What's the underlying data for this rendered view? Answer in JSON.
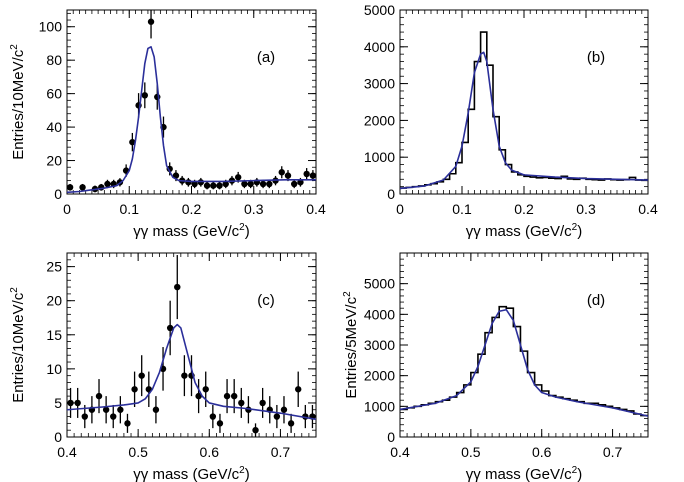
{
  "figure": {
    "panels": 4
  },
  "chart_data": [
    {
      "type": "scatter",
      "panel_label": "(a)",
      "xlabel": "γγ mass (GeV/c²)",
      "xlabel_parts": {
        "main": "γγ mass (GeV/c",
        "sup": "2",
        "end": ")"
      },
      "ylabel": "Entries/10MeV/c²",
      "ylabel_parts": {
        "main": "Entries/10MeV/c",
        "sup": "2",
        "end": ""
      },
      "xlim": [
        0,
        0.4
      ],
      "ylim": [
        0,
        110
      ],
      "xticks": [
        0,
        0.1,
        0.2,
        0.3,
        0.4
      ],
      "xtick_labels": [
        "0",
        "0.1",
        "0.2",
        "0.3",
        "0.4"
      ],
      "yticks": [
        0,
        20,
        40,
        60,
        80,
        100
      ],
      "ytick_labels": [
        "0",
        "20",
        "40",
        "60",
        "80",
        "100"
      ],
      "points": {
        "x": [
          0.005,
          0.025,
          0.045,
          0.055,
          0.065,
          0.075,
          0.085,
          0.095,
          0.105,
          0.115,
          0.125,
          0.135,
          0.145,
          0.155,
          0.165,
          0.175,
          0.185,
          0.195,
          0.205,
          0.215,
          0.225,
          0.235,
          0.245,
          0.255,
          0.265,
          0.275,
          0.285,
          0.295,
          0.305,
          0.315,
          0.325,
          0.335,
          0.345,
          0.355,
          0.365,
          0.375,
          0.385,
          0.395
        ],
        "y": [
          4,
          4,
          3,
          4,
          6,
          6,
          7,
          14,
          31,
          53,
          59,
          103,
          58,
          40,
          15,
          11,
          8,
          7,
          6,
          7,
          5,
          5,
          5,
          6,
          8,
          10,
          6,
          6,
          7,
          6,
          6,
          8,
          13,
          11,
          6,
          7,
          12,
          11
        ],
        "err": [
          2,
          2,
          2,
          2,
          2.5,
          2.5,
          2.5,
          3.7,
          5.5,
          7.3,
          7.7,
          10,
          7.6,
          6.3,
          3.9,
          3.3,
          2.8,
          2.6,
          2.5,
          2.6,
          2.2,
          2.2,
          2.2,
          2.5,
          2.8,
          3.2,
          2.5,
          2.5,
          2.6,
          2.5,
          2.5,
          2.8,
          3.6,
          3.3,
          2.5,
          2.6,
          3.5,
          3.3
        ]
      },
      "fit": {
        "x": [
          0,
          0.02,
          0.04,
          0.06,
          0.08,
          0.09,
          0.1,
          0.105,
          0.11,
          0.115,
          0.12,
          0.125,
          0.13,
          0.135,
          0.14,
          0.145,
          0.15,
          0.155,
          0.16,
          0.17,
          0.18,
          0.2,
          0.25,
          0.3,
          0.35,
          0.4
        ],
        "y": [
          1,
          1.5,
          2.5,
          3.5,
          5,
          8,
          14,
          21,
          32,
          46,
          62,
          78,
          87,
          88,
          82,
          66,
          46,
          29,
          17,
          10,
          8,
          7.5,
          7.5,
          8,
          8.5,
          8.5
        ]
      }
    },
    {
      "type": "line",
      "panel_label": "(b)",
      "xlabel": "γγ mass (GeV/c²)",
      "xlabel_parts": {
        "main": "γγ mass (GeV/c",
        "sup": "2",
        "end": ")"
      },
      "ylabel": "",
      "ylabel_parts": {
        "main": "",
        "sup": "",
        "end": ""
      },
      "xlim": [
        0,
        0.4
      ],
      "ylim": [
        0,
        5000
      ],
      "xticks": [
        0,
        0.1,
        0.2,
        0.3,
        0.4
      ],
      "xtick_labels": [
        "0",
        "0.1",
        "0.2",
        "0.3",
        "0.4"
      ],
      "yticks": [
        0,
        1000,
        2000,
        3000,
        4000,
        5000
      ],
      "ytick_labels": [
        "0",
        "1000",
        "2000",
        "3000",
        "4000",
        "5000"
      ],
      "histogram": {
        "bin_edges": [
          0,
          0.01,
          0.02,
          0.03,
          0.04,
          0.05,
          0.06,
          0.07,
          0.08,
          0.09,
          0.1,
          0.11,
          0.12,
          0.13,
          0.14,
          0.15,
          0.16,
          0.17,
          0.18,
          0.19,
          0.2,
          0.21,
          0.22,
          0.23,
          0.24,
          0.25,
          0.26,
          0.27,
          0.28,
          0.29,
          0.3,
          0.31,
          0.32,
          0.33,
          0.34,
          0.35,
          0.36,
          0.37,
          0.38,
          0.39,
          0.4
        ],
        "values": [
          160,
          180,
          200,
          220,
          250,
          280,
          330,
          400,
          550,
          850,
          1400,
          2300,
          3600,
          4400,
          3500,
          2100,
          1200,
          800,
          600,
          520,
          480,
          460,
          440,
          450,
          430,
          420,
          480,
          410,
          400,
          430,
          400,
          390,
          380,
          410,
          390,
          380,
          390,
          450,
          380,
          370
        ]
      },
      "fit": {
        "x": [
          0,
          0.04,
          0.07,
          0.09,
          0.1,
          0.11,
          0.12,
          0.13,
          0.135,
          0.14,
          0.15,
          0.16,
          0.17,
          0.18,
          0.2,
          0.25,
          0.3,
          0.35,
          0.4
        ],
        "y": [
          150,
          220,
          380,
          750,
          1300,
          2200,
          3300,
          3800,
          3850,
          3600,
          2300,
          1300,
          850,
          650,
          520,
          460,
          420,
          400,
          380
        ]
      }
    },
    {
      "type": "scatter",
      "panel_label": "(c)",
      "xlabel": "γγ mass (GeV/c²)",
      "xlabel_parts": {
        "main": "γγ mass (GeV/c",
        "sup": "2",
        "end": ")"
      },
      "ylabel": "Entries/10MeV/c²",
      "ylabel_parts": {
        "main": "Entries/10MeV/c",
        "sup": "2",
        "end": ""
      },
      "xlim": [
        0.4,
        0.75
      ],
      "ylim": [
        0,
        27
      ],
      "xticks": [
        0.4,
        0.5,
        0.6,
        0.7
      ],
      "xtick_labels": [
        "0.4",
        "0.5",
        "0.6",
        "0.7"
      ],
      "yticks": [
        0,
        5,
        10,
        15,
        20,
        25
      ],
      "ytick_labels": [
        "0",
        "5",
        "10",
        "15",
        "20",
        "25"
      ],
      "points": {
        "x": [
          0.405,
          0.415,
          0.425,
          0.435,
          0.445,
          0.455,
          0.465,
          0.475,
          0.485,
          0.495,
          0.505,
          0.515,
          0.525,
          0.535,
          0.545,
          0.555,
          0.565,
          0.575,
          0.585,
          0.595,
          0.605,
          0.615,
          0.625,
          0.635,
          0.645,
          0.655,
          0.665,
          0.675,
          0.685,
          0.695,
          0.705,
          0.715,
          0.725,
          0.735,
          0.745
        ],
        "y": [
          5,
          5,
          3,
          4,
          6,
          4,
          3,
          4,
          2,
          7,
          9,
          7,
          4,
          10,
          16,
          22,
          9,
          9,
          6,
          7,
          3,
          2,
          6,
          6,
          5,
          4,
          1,
          5,
          4,
          3,
          4,
          2,
          7,
          3,
          3
        ],
        "err": [
          2.2,
          2.2,
          1.7,
          2,
          2.5,
          2,
          1.7,
          2,
          1.4,
          2.6,
          3,
          2.6,
          2,
          3.2,
          4,
          4.7,
          3,
          3,
          2.5,
          2.6,
          1.7,
          1.4,
          2.5,
          2.5,
          2.2,
          2,
          1,
          2.2,
          2,
          1.7,
          2,
          1.4,
          2.6,
          1.7,
          1.7
        ]
      },
      "fit": {
        "x": [
          0.4,
          0.45,
          0.48,
          0.5,
          0.51,
          0.52,
          0.53,
          0.54,
          0.55,
          0.555,
          0.56,
          0.57,
          0.58,
          0.59,
          0.6,
          0.62,
          0.65,
          0.7,
          0.75
        ],
        "y": [
          4,
          4.4,
          4.7,
          5,
          5.6,
          7,
          9.5,
          13,
          16,
          16.5,
          16,
          12,
          8,
          6,
          5,
          4.5,
          4.2,
          3.5,
          2.6
        ]
      }
    },
    {
      "type": "line",
      "panel_label": "(d)",
      "xlabel": "γγ mass (GeV/c²)",
      "xlabel_parts": {
        "main": "γγ mass (GeV/c",
        "sup": "2",
        "end": ")"
      },
      "ylabel": "Entries/5MeV/c²",
      "ylabel_parts": {
        "main": "Entries/5MeV/c",
        "sup": "2",
        "end": ""
      },
      "xlim": [
        0.4,
        0.75
      ],
      "ylim": [
        0,
        6000
      ],
      "xticks": [
        0.4,
        0.5,
        0.6,
        0.7
      ],
      "xtick_labels": [
        "0.4",
        "0.5",
        "0.6",
        "0.7"
      ],
      "yticks": [
        0,
        1000,
        2000,
        3000,
        4000,
        5000
      ],
      "ytick_labels": [
        "0",
        "1000",
        "2000",
        "3000",
        "4000",
        "5000"
      ],
      "histogram": {
        "bin_edges": [
          0.4,
          0.41,
          0.42,
          0.43,
          0.44,
          0.45,
          0.46,
          0.47,
          0.48,
          0.49,
          0.5,
          0.51,
          0.52,
          0.53,
          0.54,
          0.55,
          0.56,
          0.57,
          0.58,
          0.59,
          0.6,
          0.61,
          0.62,
          0.63,
          0.64,
          0.65,
          0.66,
          0.67,
          0.68,
          0.69,
          0.7,
          0.71,
          0.72,
          0.73,
          0.74,
          0.75
        ],
        "values": [
          900,
          950,
          1000,
          1050,
          1100,
          1150,
          1200,
          1300,
          1450,
          1700,
          2100,
          2700,
          3400,
          3900,
          4250,
          4200,
          3600,
          2800,
          2100,
          1700,
          1500,
          1350,
          1300,
          1250,
          1200,
          1150,
          1100,
          1100,
          1050,
          1000,
          950,
          900,
          850,
          750,
          700
        ]
      },
      "fit": {
        "x": [
          0.4,
          0.45,
          0.48,
          0.5,
          0.51,
          0.52,
          0.53,
          0.54,
          0.55,
          0.56,
          0.57,
          0.58,
          0.59,
          0.6,
          0.62,
          0.65,
          0.7,
          0.75
        ],
        "y": [
          900,
          1100,
          1350,
          1800,
          2300,
          3000,
          3700,
          4100,
          4150,
          3800,
          3000,
          2200,
          1700,
          1450,
          1300,
          1150,
          950,
          680
        ]
      }
    }
  ]
}
